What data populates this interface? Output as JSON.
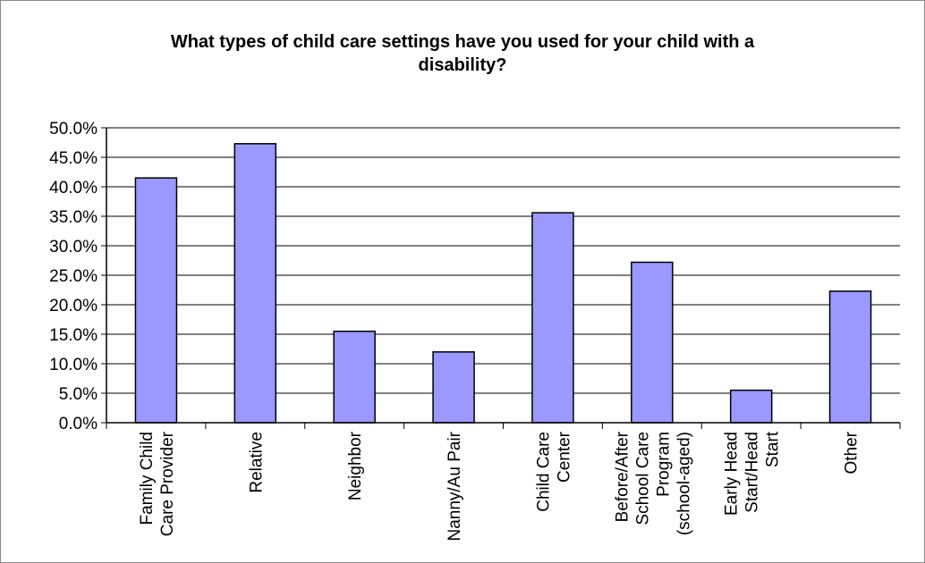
{
  "chart_data": {
    "type": "bar",
    "title_lines": [
      "What types of child care settings have you used for your child with a",
      "disability?"
    ],
    "xlabel": "",
    "ylabel": "",
    "ylim": [
      0,
      50
    ],
    "y_ticks": [
      {
        "value": 0,
        "label": "0.0%"
      },
      {
        "value": 5,
        "label": "5.0%"
      },
      {
        "value": 10,
        "label": "10.0%"
      },
      {
        "value": 15,
        "label": "15.0%"
      },
      {
        "value": 20,
        "label": "20.0%"
      },
      {
        "value": 25,
        "label": "25.0%"
      },
      {
        "value": 30,
        "label": "30.0%"
      },
      {
        "value": 35,
        "label": "35.0%"
      },
      {
        "value": 40,
        "label": "40.0%"
      },
      {
        "value": 45,
        "label": "45.0%"
      },
      {
        "value": 50,
        "label": "50.0%"
      }
    ],
    "categories": [
      "Family Child Care Provider",
      "Relative",
      "Neighbor",
      "Nanny/Au Pair",
      "Child Care Center",
      "Before/After School Care Program (school-aged)",
      "Early Head Start/Head Start",
      "Other"
    ],
    "category_label_lines": [
      [
        "Family Child",
        "Care Provider"
      ],
      [
        "Relative"
      ],
      [
        "Neighbor"
      ],
      [
        "Nanny/Au Pair"
      ],
      [
        "Child Care",
        "Center"
      ],
      [
        "Before/After",
        "School Care",
        "Program",
        "(school-aged)"
      ],
      [
        "Early Head",
        "Start/Head",
        "Start"
      ],
      [
        "Other"
      ]
    ],
    "values": [
      41.5,
      47.3,
      15.5,
      12.0,
      35.6,
      27.2,
      5.5,
      22.3
    ],
    "grid": true,
    "legend": "none",
    "colors": {
      "bar_fill": "#9999ff",
      "bar_stroke": "#000000",
      "grid": "#000000",
      "frame": "#8a8a8a"
    }
  }
}
